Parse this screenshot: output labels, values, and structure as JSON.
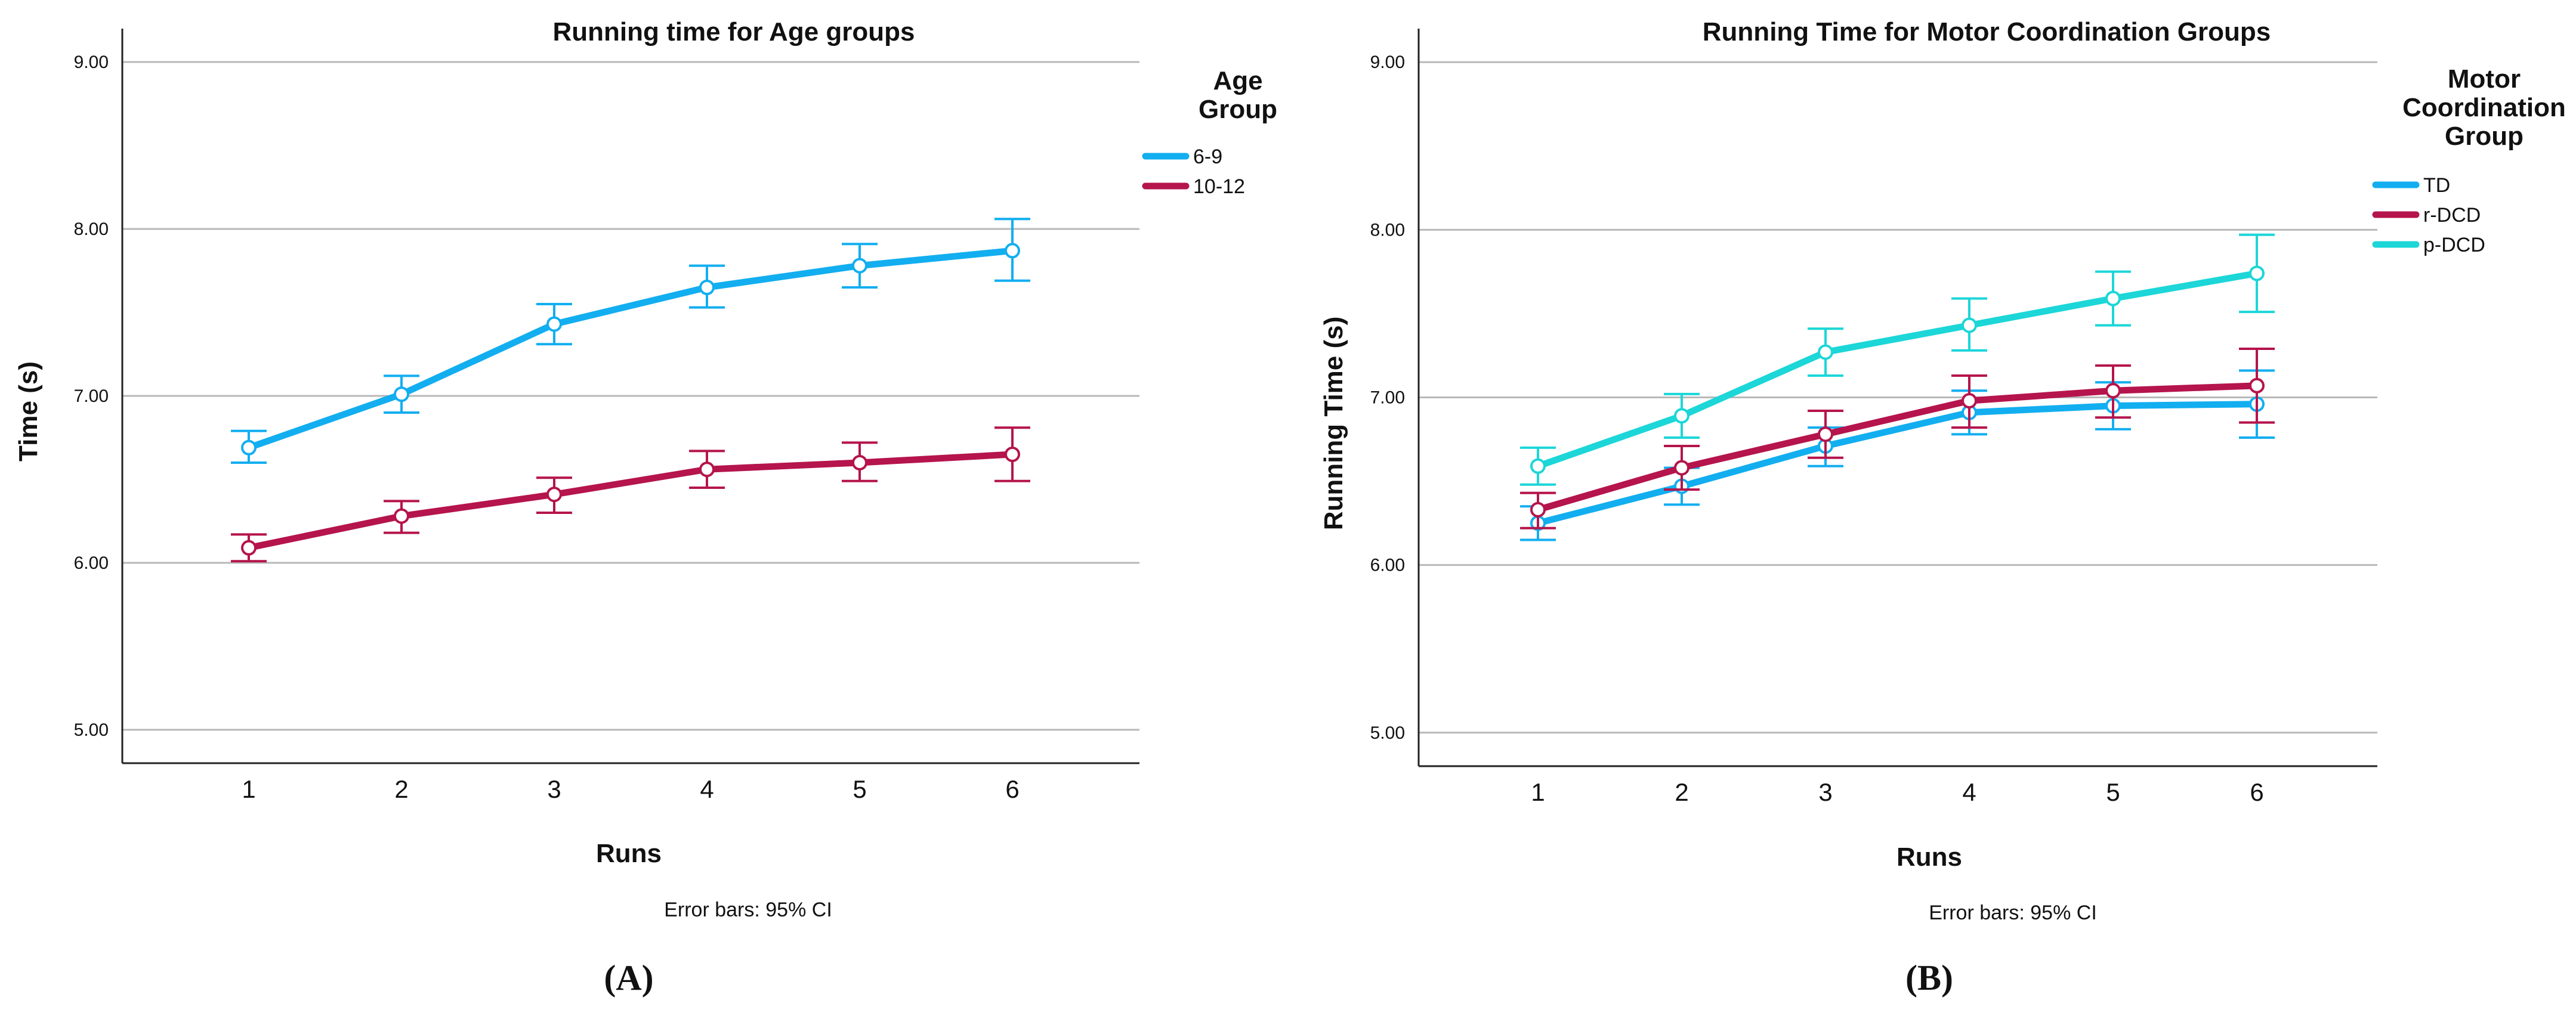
{
  "chart_data": [
    {
      "type": "line",
      "panel": "(A)",
      "title": "Running time for Age groups",
      "xlabel": "Runs",
      "ylabel": "Time (s)",
      "categories": [
        "1",
        "2",
        "3",
        "4",
        "5",
        "6"
      ],
      "ylim": [
        4.8,
        9.2
      ],
      "yticks": [
        "5.00",
        "6.00",
        "7.00",
        "8.00",
        "9.00"
      ],
      "grid": true,
      "legend_title": [
        "Age",
        "Group"
      ],
      "legend_position": "right",
      "footnote": "Error bars: 95% CI",
      "series": [
        {
          "name": "6-9",
          "color": "#12aef0",
          "values": [
            6.69,
            7.01,
            7.43,
            7.65,
            7.78,
            7.87
          ],
          "ci_low": [
            6.6,
            6.9,
            7.31,
            7.53,
            7.65,
            7.69
          ],
          "ci_high": [
            6.79,
            7.12,
            7.55,
            7.78,
            7.91,
            8.06
          ]
        },
        {
          "name": "10-12",
          "color": "#b5144c",
          "values": [
            6.09,
            6.28,
            6.41,
            6.56,
            6.6,
            6.65
          ],
          "ci_low": [
            6.01,
            6.18,
            6.3,
            6.45,
            6.49,
            6.49
          ],
          "ci_high": [
            6.17,
            6.37,
            6.51,
            6.67,
            6.72,
            6.81
          ]
        }
      ]
    },
    {
      "type": "line",
      "panel": "(B)",
      "title": "Running Time for Motor Coordination Groups",
      "xlabel": "Runs",
      "ylabel": "Running Time (s)",
      "categories": [
        "1",
        "2",
        "3",
        "4",
        "5",
        "6"
      ],
      "ylim": [
        4.8,
        9.2
      ],
      "yticks": [
        "5.00",
        "6.00",
        "7.00",
        "8.00",
        "9.00"
      ],
      "grid": true,
      "legend_title": [
        "Motor",
        "Coordination",
        "Group"
      ],
      "legend_position": "right",
      "footnote": "Error bars: 95% CI",
      "series": [
        {
          "name": "TD",
          "color": "#12aef0",
          "values": [
            6.25,
            6.47,
            6.71,
            6.91,
            6.95,
            6.96
          ],
          "ci_low": [
            6.15,
            6.36,
            6.59,
            6.78,
            6.81,
            6.76
          ],
          "ci_high": [
            6.35,
            6.58,
            6.82,
            7.04,
            7.09,
            7.16
          ]
        },
        {
          "name": "r-DCD",
          "color": "#b5144c",
          "values": [
            6.33,
            6.58,
            6.78,
            6.98,
            7.04,
            7.07
          ],
          "ci_low": [
            6.22,
            6.45,
            6.64,
            6.82,
            6.88,
            6.85
          ],
          "ci_high": [
            6.43,
            6.71,
            6.92,
            7.13,
            7.19,
            7.29
          ]
        },
        {
          "name": "p-DCD",
          "color": "#1cd6d8",
          "values": [
            6.59,
            6.89,
            7.27,
            7.43,
            7.59,
            7.74
          ],
          "ci_low": [
            6.48,
            6.76,
            7.13,
            7.28,
            7.43,
            7.51
          ],
          "ci_high": [
            6.7,
            7.02,
            7.41,
            7.59,
            7.75,
            7.97
          ]
        }
      ]
    }
  ]
}
